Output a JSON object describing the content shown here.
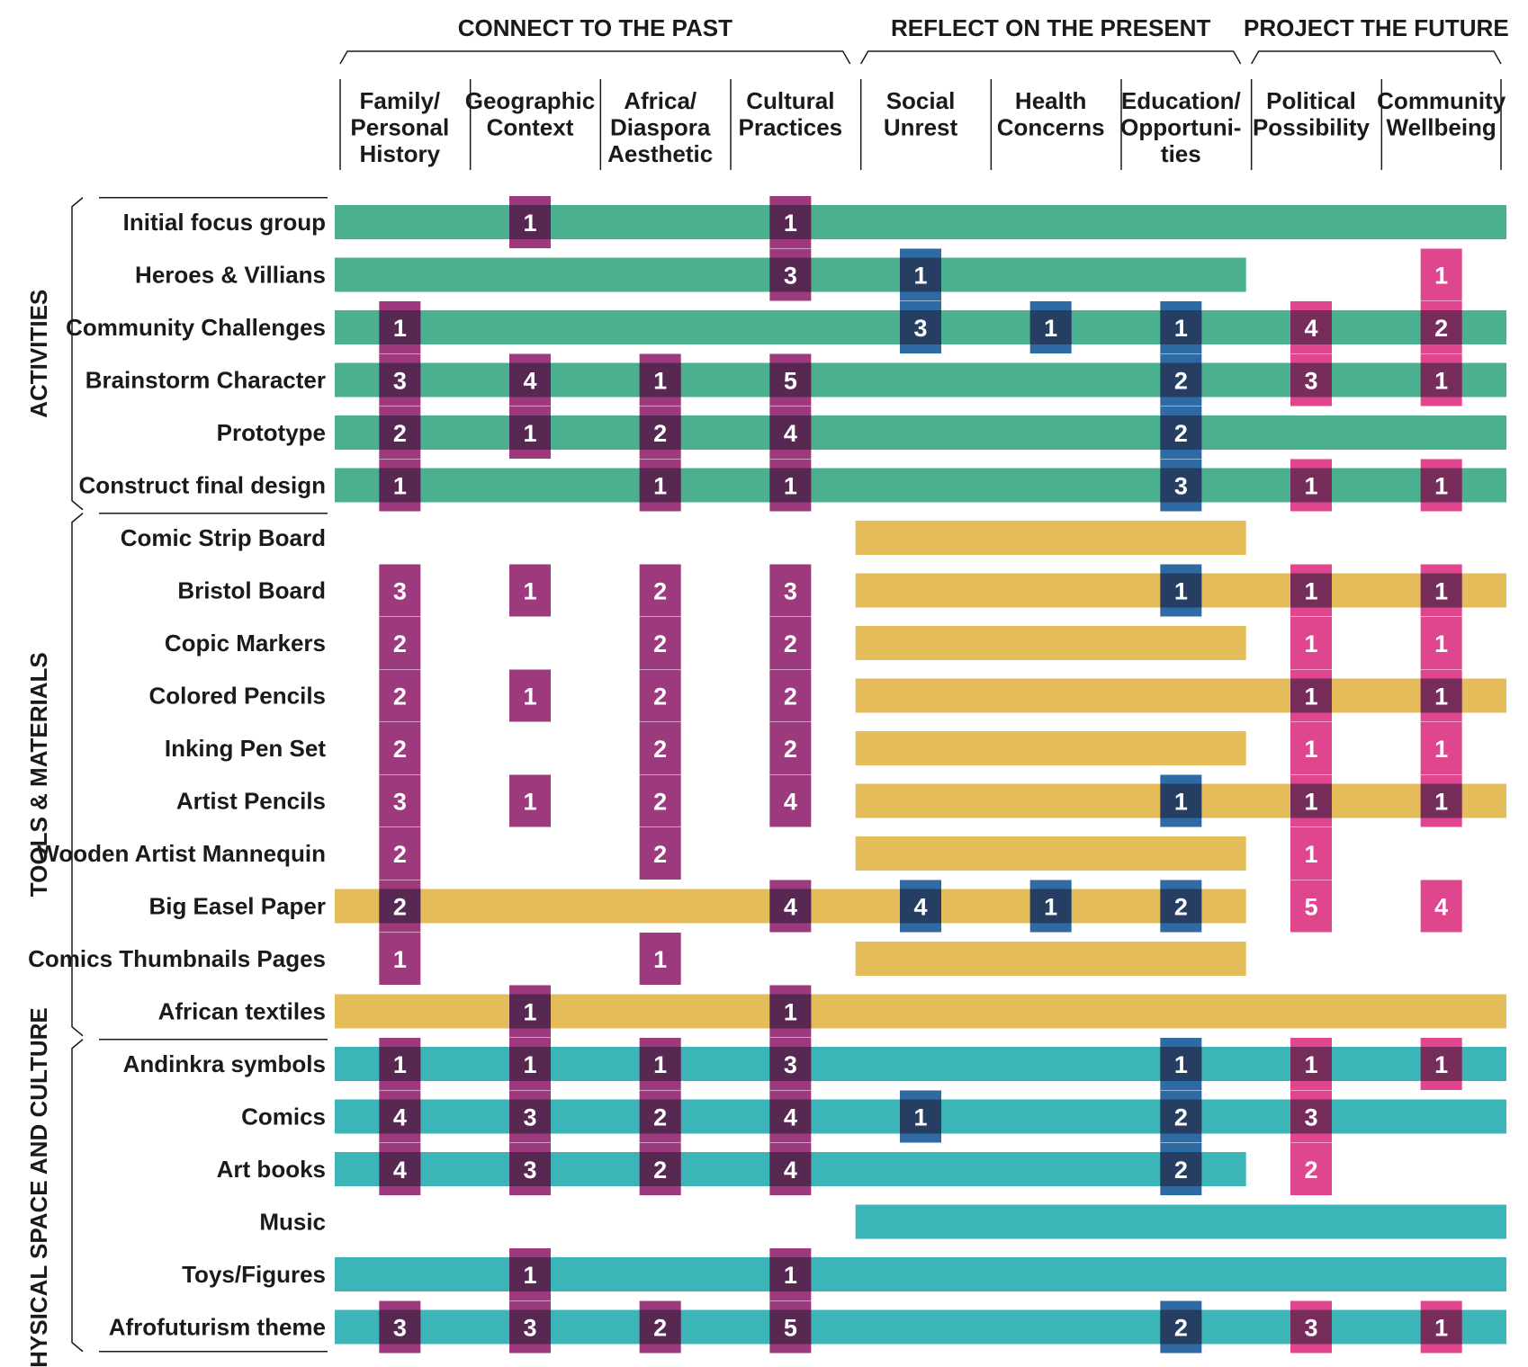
{
  "chart_data": {
    "type": "heatmap",
    "column_groups": [
      {
        "label": "CONNECT TO THE PAST",
        "columns": [
          0,
          3
        ]
      },
      {
        "label": "REFLECT ON THE PRESENT",
        "columns": [
          4,
          6
        ]
      },
      {
        "label": "PROJECT THE FUTURE",
        "columns": [
          7,
          8
        ]
      }
    ],
    "columns": [
      {
        "label": [
          "Family/",
          "Personal",
          "History"
        ],
        "group": 0
      },
      {
        "label": [
          "Geographic",
          "Context"
        ],
        "group": 0
      },
      {
        "label": [
          "Africa/",
          "Diaspora",
          "Aesthetic"
        ],
        "group": 0
      },
      {
        "label": [
          "Cultural",
          "Practices"
        ],
        "group": 0
      },
      {
        "label": [
          "Social",
          "Unrest"
        ],
        "group": 1
      },
      {
        "label": [
          "Health",
          "Concerns"
        ],
        "group": 1
      },
      {
        "label": [
          "Education/",
          "Opportuni-",
          "ties"
        ],
        "group": 1
      },
      {
        "label": [
          "Political",
          "Possibility"
        ],
        "group": 2
      },
      {
        "label": [
          "Community",
          "Wellbeing"
        ],
        "group": 2
      }
    ],
    "sections": [
      {
        "label": "ACTIVITIES",
        "color": "#4bb08f",
        "rows": [
          {
            "label": "Initial focus group",
            "values": [
              null,
              1,
              null,
              1,
              null,
              null,
              null,
              null,
              null
            ],
            "band": [
              0,
              8
            ]
          },
          {
            "label": "Heroes & Villians",
            "values": [
              null,
              null,
              null,
              3,
              1,
              null,
              null,
              null,
              1
            ],
            "band": [
              0,
              6
            ]
          },
          {
            "label": "Community Challenges",
            "values": [
              1,
              null,
              null,
              null,
              3,
              1,
              1,
              4,
              2
            ],
            "band": [
              0,
              8
            ]
          },
          {
            "label": "Brainstorm Character",
            "values": [
              3,
              4,
              1,
              5,
              null,
              null,
              2,
              3,
              1
            ],
            "band": [
              0,
              8
            ]
          },
          {
            "label": "Prototype",
            "values": [
              2,
              1,
              2,
              4,
              null,
              null,
              2,
              null,
              null
            ],
            "band": [
              0,
              8
            ]
          },
          {
            "label": "Construct final design",
            "values": [
              1,
              null,
              1,
              1,
              null,
              null,
              3,
              1,
              1
            ],
            "band": [
              0,
              8
            ]
          }
        ]
      },
      {
        "label": "TOOLS & MATERIALS",
        "color": "#e4bc5a",
        "rows": [
          {
            "label": "Comic Strip Board",
            "values": [
              null,
              null,
              null,
              null,
              null,
              null,
              null,
              null,
              null
            ],
            "band": [
              4,
              6
            ]
          },
          {
            "label": "Bristol Board",
            "values": [
              3,
              1,
              2,
              3,
              null,
              null,
              1,
              1,
              1
            ],
            "band": [
              4,
              8
            ]
          },
          {
            "label": "Copic Markers",
            "values": [
              2,
              null,
              2,
              2,
              null,
              null,
              null,
              1,
              1
            ],
            "band": [
              4,
              6
            ]
          },
          {
            "label": "Colored Pencils",
            "values": [
              2,
              1,
              2,
              2,
              null,
              null,
              null,
              1,
              1
            ],
            "band": [
              4,
              8
            ]
          },
          {
            "label": "Inking Pen Set",
            "values": [
              2,
              null,
              2,
              2,
              null,
              null,
              null,
              1,
              1
            ],
            "band": [
              4,
              6
            ]
          },
          {
            "label": "Artist Pencils",
            "values": [
              3,
              1,
              2,
              4,
              null,
              null,
              1,
              1,
              1
            ],
            "band": [
              4,
              8
            ]
          },
          {
            "label": "Wooden Artist Mannequin",
            "values": [
              2,
              null,
              2,
              null,
              null,
              null,
              null,
              1,
              null
            ],
            "band": [
              4,
              6
            ]
          },
          {
            "label": "Big Easel Paper",
            "values": [
              2,
              null,
              null,
              4,
              4,
              1,
              2,
              5,
              4
            ],
            "band": [
              0,
              6
            ]
          },
          {
            "label": "Comics Thumbnails Pages",
            "values": [
              1,
              null,
              1,
              null,
              null,
              null,
              null,
              null,
              null
            ],
            "band": [
              4,
              6
            ]
          },
          {
            "label": "African textiles",
            "values": [
              null,
              1,
              null,
              1,
              null,
              null,
              null,
              null,
              null
            ],
            "band": [
              0,
              8
            ]
          }
        ]
      },
      {
        "label": "PHYSICAL SPACE AND CULTURE",
        "color": "#3bb5b8",
        "rows": [
          {
            "label": "Andinkra symbols",
            "values": [
              1,
              1,
              1,
              3,
              null,
              null,
              1,
              1,
              1
            ],
            "band": [
              0,
              8
            ]
          },
          {
            "label": "Comics",
            "values": [
              4,
              3,
              2,
              4,
              1,
              null,
              2,
              3,
              null
            ],
            "band": [
              0,
              8
            ]
          },
          {
            "label": "Art books",
            "values": [
              4,
              3,
              2,
              4,
              null,
              null,
              2,
              2,
              null
            ],
            "band": [
              0,
              6
            ]
          },
          {
            "label": "Music",
            "values": [
              null,
              null,
              null,
              null,
              null,
              null,
              null,
              null,
              null
            ],
            "band": [
              4,
              8
            ]
          },
          {
            "label": "Toys/Figures",
            "values": [
              null,
              1,
              null,
              1,
              null,
              null,
              null,
              null,
              null
            ],
            "band": [
              0,
              8
            ]
          },
          {
            "label": "Afrofuturism theme",
            "values": [
              3,
              3,
              2,
              5,
              null,
              null,
              2,
              3,
              1
            ],
            "band": [
              0,
              8
            ]
          }
        ]
      }
    ],
    "colors": {
      "past": "#9c3a7d",
      "present": "#2e6aa3",
      "future": "#e0468e",
      "activities": "#4bb08f",
      "tools": "#e4bc5a",
      "culture": "#3bb5b8"
    }
  }
}
